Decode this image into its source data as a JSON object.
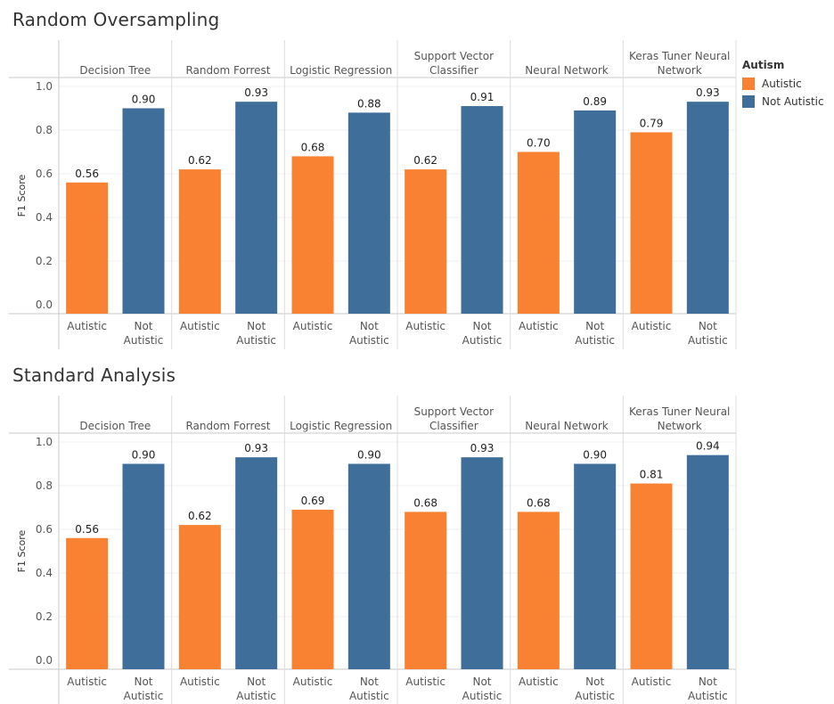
{
  "legend": {
    "title": "Autism",
    "items": [
      {
        "label": "Autistic",
        "color": "#F98232"
      },
      {
        "label": "Not Autistic",
        "color": "#3E6E99"
      }
    ]
  },
  "chart_data": [
    {
      "type": "bar",
      "title": "Random Oversampling",
      "ylabel": "F1 Score",
      "ylim": [
        0,
        1.0
      ],
      "yticks": [
        "0.0",
        "0.2",
        "0.4",
        "0.6",
        "0.8",
        "1.0"
      ],
      "groups": [
        {
          "name_lines": [
            "Decision Tree"
          ],
          "bars": [
            {
              "category_lines": [
                "Autistic"
              ],
              "value": 0.56,
              "label": "0.56"
            },
            {
              "category_lines": [
                "Not",
                "Autistic"
              ],
              "value": 0.9,
              "label": "0.90"
            }
          ]
        },
        {
          "name_lines": [
            "Random Forrest"
          ],
          "bars": [
            {
              "category_lines": [
                "Autistic"
              ],
              "value": 0.62,
              "label": "0.62"
            },
            {
              "category_lines": [
                "Not",
                "Autistic"
              ],
              "value": 0.93,
              "label": "0.93"
            }
          ]
        },
        {
          "name_lines": [
            "Logistic Regression"
          ],
          "bars": [
            {
              "category_lines": [
                "Autistic"
              ],
              "value": 0.68,
              "label": "0.68"
            },
            {
              "category_lines": [
                "Not",
                "Autistic"
              ],
              "value": 0.88,
              "label": "0.88"
            }
          ]
        },
        {
          "name_lines": [
            "Support Vector",
            "Classifier"
          ],
          "bars": [
            {
              "category_lines": [
                "Autistic"
              ],
              "value": 0.62,
              "label": "0.62"
            },
            {
              "category_lines": [
                "Not",
                "Autistic"
              ],
              "value": 0.91,
              "label": "0.91"
            }
          ]
        },
        {
          "name_lines": [
            "Neural Network"
          ],
          "bars": [
            {
              "category_lines": [
                "Autistic"
              ],
              "value": 0.7,
              "label": "0.70"
            },
            {
              "category_lines": [
                "Not",
                "Autistic"
              ],
              "value": 0.89,
              "label": "0.89"
            }
          ]
        },
        {
          "name_lines": [
            "Keras Tuner Neural",
            "Network"
          ],
          "bars": [
            {
              "category_lines": [
                "Autistic"
              ],
              "value": 0.79,
              "label": "0.79"
            },
            {
              "category_lines": [
                "Not",
                "Autistic"
              ],
              "value": 0.93,
              "label": "0.93"
            }
          ]
        }
      ]
    },
    {
      "type": "bar",
      "title": "Standard Analysis",
      "ylabel": "F1 Score",
      "ylim": [
        0,
        1.0
      ],
      "yticks": [
        "0.0",
        "0.2",
        "0.4",
        "0.6",
        "0.8",
        "1.0"
      ],
      "groups": [
        {
          "name_lines": [
            "Decision Tree"
          ],
          "bars": [
            {
              "category_lines": [
                "Autistic"
              ],
              "value": 0.56,
              "label": "0.56"
            },
            {
              "category_lines": [
                "Not",
                "Autistic"
              ],
              "value": 0.9,
              "label": "0.90"
            }
          ]
        },
        {
          "name_lines": [
            "Random Forrest"
          ],
          "bars": [
            {
              "category_lines": [
                "Autistic"
              ],
              "value": 0.62,
              "label": "0.62"
            },
            {
              "category_lines": [
                "Not",
                "Autistic"
              ],
              "value": 0.93,
              "label": "0.93"
            }
          ]
        },
        {
          "name_lines": [
            "Logistic Regression"
          ],
          "bars": [
            {
              "category_lines": [
                "Autistic"
              ],
              "value": 0.69,
              "label": "0.69"
            },
            {
              "category_lines": [
                "Not",
                "Autistic"
              ],
              "value": 0.9,
              "label": "0.90"
            }
          ]
        },
        {
          "name_lines": [
            "Support Vector",
            "Classifier"
          ],
          "bars": [
            {
              "category_lines": [
                "Autistic"
              ],
              "value": 0.68,
              "label": "0.68"
            },
            {
              "category_lines": [
                "Not",
                "Autistic"
              ],
              "value": 0.93,
              "label": "0.93"
            }
          ]
        },
        {
          "name_lines": [
            "Neural Network"
          ],
          "bars": [
            {
              "category_lines": [
                "Autistic"
              ],
              "value": 0.68,
              "label": "0.68"
            },
            {
              "category_lines": [
                "Not",
                "Autistic"
              ],
              "value": 0.9,
              "label": "0.90"
            }
          ]
        },
        {
          "name_lines": [
            "Keras Tuner Neural",
            "Network"
          ],
          "bars": [
            {
              "category_lines": [
                "Autistic"
              ],
              "value": 0.81,
              "label": "0.81"
            },
            {
              "category_lines": [
                "Not",
                "Autistic"
              ],
              "value": 0.94,
              "label": "0.94"
            }
          ]
        }
      ]
    }
  ]
}
